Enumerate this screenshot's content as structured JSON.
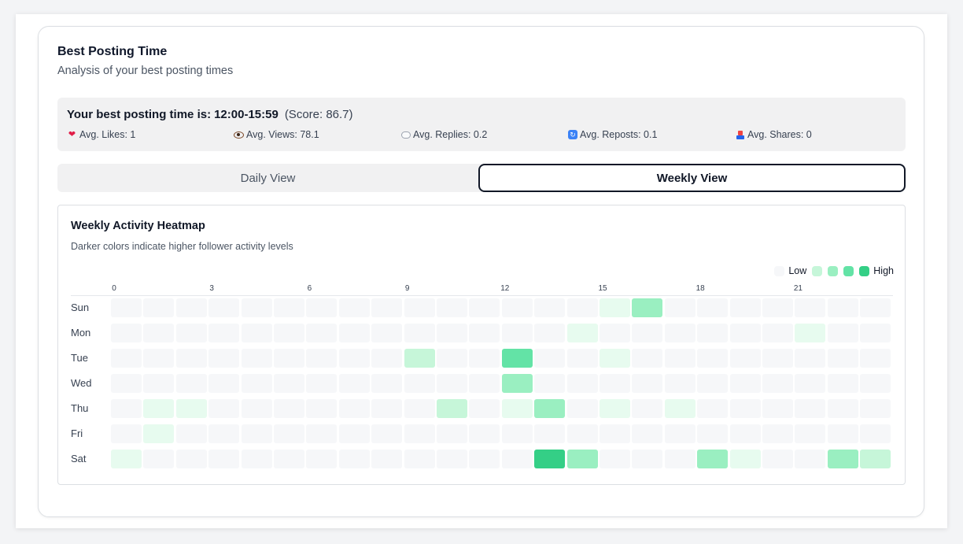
{
  "header": {
    "title": "Best Posting Time",
    "subtitle": "Analysis of your best posting times"
  },
  "best_time": {
    "prefix": "Your best posting time is:",
    "time": "12:00-15:59",
    "score": "(Score: 86.7)",
    "stats": [
      {
        "icon": "heart-icon",
        "label": "Avg. Likes: 1"
      },
      {
        "icon": "eye-icon",
        "label": "Avg. Views: 78.1"
      },
      {
        "icon": "speech-bubble-icon",
        "label": "Avg. Replies: 0.2"
      },
      {
        "icon": "repost-icon",
        "label": "Avg. Reposts: 0.1"
      },
      {
        "icon": "share-icon",
        "label": "Avg. Shares: 0"
      }
    ]
  },
  "tabs": {
    "daily": "Daily View",
    "weekly": "Weekly View",
    "active": "weekly"
  },
  "heatmap": {
    "title": "Weekly Activity Heatmap",
    "subtitle": "Darker colors indicate higher follower activity levels",
    "legend": {
      "low": "Low",
      "high": "High"
    },
    "colors": [
      "#f6f7f9",
      "#e7fbef",
      "#c6f6d9",
      "#9aefc1",
      "#63e3a6",
      "#34cf86"
    ],
    "hour_labels": [
      "0",
      "3",
      "6",
      "9",
      "12",
      "15",
      "18",
      "21"
    ],
    "days": [
      "Sun",
      "Mon",
      "Tue",
      "Wed",
      "Thu",
      "Fri",
      "Sat"
    ],
    "levels": [
      [
        0,
        0,
        0,
        0,
        0,
        0,
        0,
        0,
        0,
        0,
        0,
        0,
        0,
        0,
        0,
        1,
        3,
        0,
        0,
        0,
        0,
        0,
        0,
        0
      ],
      [
        0,
        0,
        0,
        0,
        0,
        0,
        0,
        0,
        0,
        0,
        0,
        0,
        0,
        0,
        1,
        0,
        0,
        0,
        0,
        0,
        0,
        1,
        0,
        0
      ],
      [
        0,
        0,
        0,
        0,
        0,
        0,
        0,
        0,
        0,
        2,
        0,
        0,
        4,
        0,
        0,
        1,
        0,
        0,
        0,
        0,
        0,
        0,
        0,
        0
      ],
      [
        0,
        0,
        0,
        0,
        0,
        0,
        0,
        0,
        0,
        0,
        0,
        0,
        3,
        0,
        0,
        0,
        0,
        0,
        0,
        0,
        0,
        0,
        0,
        0
      ],
      [
        0,
        1,
        1,
        0,
        0,
        0,
        0,
        0,
        0,
        0,
        2,
        0,
        1,
        3,
        0,
        1,
        0,
        1,
        0,
        0,
        0,
        0,
        0,
        0
      ],
      [
        0,
        1,
        0,
        0,
        0,
        0,
        0,
        0,
        0,
        0,
        0,
        0,
        0,
        0,
        0,
        0,
        0,
        0,
        0,
        0,
        0,
        0,
        0,
        0
      ],
      [
        1,
        0,
        0,
        0,
        0,
        0,
        0,
        0,
        0,
        0,
        0,
        0,
        0,
        5,
        3,
        0,
        0,
        0,
        3,
        1,
        0,
        0,
        3,
        2
      ]
    ]
  }
}
